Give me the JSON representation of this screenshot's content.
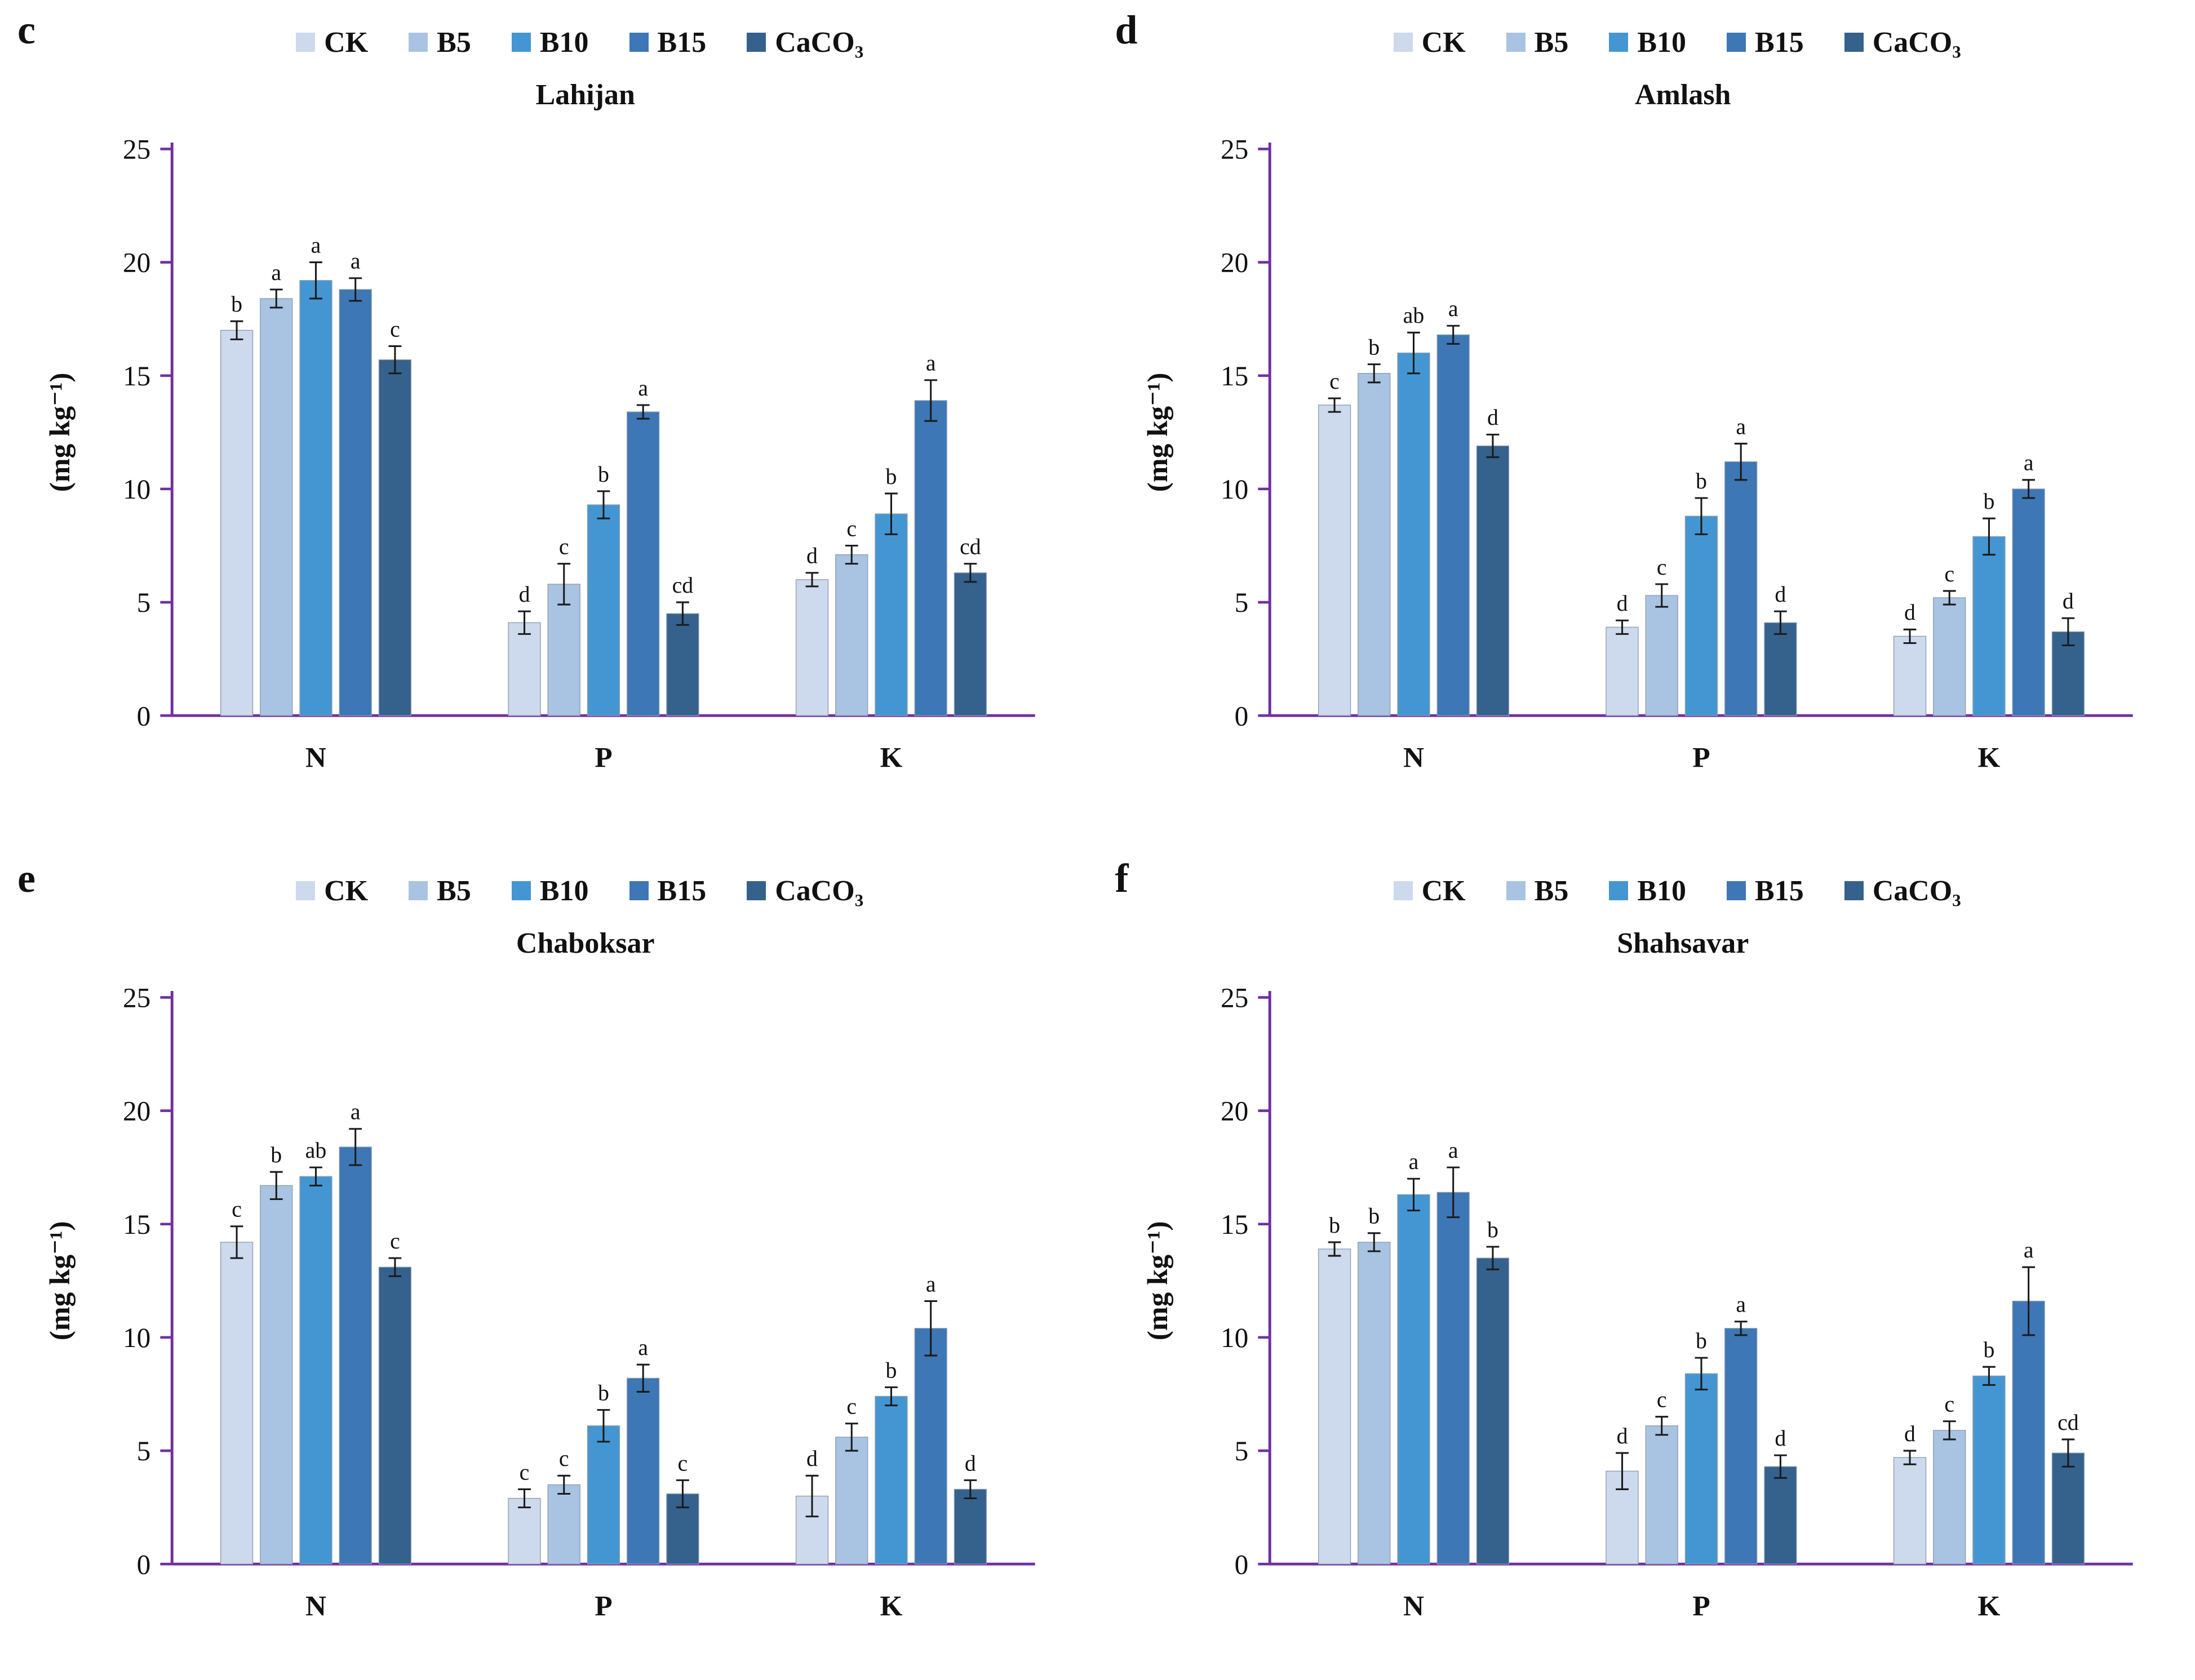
{
  "figure": {
    "axis_color": "#7030a0",
    "error_bar_color": "#1a1a1a",
    "bar_border_color": "#8d9bb0"
  },
  "chart_data": [
    {
      "type": "bar",
      "panel": "c",
      "title": "Lahijan",
      "ylabel": "(mg kg⁻¹)",
      "ylim": [
        0,
        25
      ],
      "yticks": [
        0,
        5,
        10,
        15,
        20,
        25
      ],
      "categories": [
        "N",
        "P",
        "K"
      ],
      "legend_position": "top",
      "grid": false,
      "series": [
        {
          "name": "CK",
          "color": "#cdd9ec",
          "values": [
            17.0,
            4.1,
            6.0
          ],
          "errors": [
            0.4,
            0.5,
            0.3
          ],
          "letters": [
            "b",
            "d",
            "d"
          ]
        },
        {
          "name": "B5",
          "color": "#a9c3e2",
          "values": [
            18.4,
            5.8,
            7.1
          ],
          "errors": [
            0.4,
            0.9,
            0.4
          ],
          "letters": [
            "a",
            "c",
            "c"
          ]
        },
        {
          "name": "B10",
          "color": "#4496d2",
          "values": [
            19.2,
            9.3,
            8.9
          ],
          "errors": [
            0.8,
            0.6,
            0.9
          ],
          "letters": [
            "a",
            "b",
            "b"
          ]
        },
        {
          "name": "B15",
          "color": "#3d77b5",
          "values": [
            18.8,
            13.4,
            13.9
          ],
          "errors": [
            0.5,
            0.3,
            0.9
          ],
          "letters": [
            "a",
            "a",
            "a"
          ]
        },
        {
          "name": "CaCO₃",
          "color": "#35618d",
          "values": [
            15.7,
            4.5,
            6.3
          ],
          "errors": [
            0.6,
            0.5,
            0.4
          ],
          "letters": [
            "c",
            "cd",
            "cd"
          ]
        }
      ]
    },
    {
      "type": "bar",
      "panel": "d",
      "title": "Amlash",
      "ylabel": "(mg kg⁻¹)",
      "ylim": [
        0,
        25
      ],
      "yticks": [
        0,
        5,
        10,
        15,
        20,
        25
      ],
      "categories": [
        "N",
        "P",
        "K"
      ],
      "legend_position": "top",
      "grid": false,
      "series": [
        {
          "name": "CK",
          "color": "#cdd9ec",
          "values": [
            13.7,
            3.9,
            3.5
          ],
          "errors": [
            0.3,
            0.3,
            0.3
          ],
          "letters": [
            "c",
            "d",
            "d"
          ]
        },
        {
          "name": "B5",
          "color": "#a9c3e2",
          "values": [
            15.1,
            5.3,
            5.2
          ],
          "errors": [
            0.4,
            0.5,
            0.3
          ],
          "letters": [
            "b",
            "c",
            "c"
          ]
        },
        {
          "name": "B10",
          "color": "#4496d2",
          "values": [
            16.0,
            8.8,
            7.9
          ],
          "errors": [
            0.9,
            0.8,
            0.8
          ],
          "letters": [
            "ab",
            "b",
            "b"
          ]
        },
        {
          "name": "B15",
          "color": "#3d77b5",
          "values": [
            16.8,
            11.2,
            10.0
          ],
          "errors": [
            0.4,
            0.8,
            0.4
          ],
          "letters": [
            "a",
            "a",
            "a"
          ]
        },
        {
          "name": "CaCO₃",
          "color": "#35618d",
          "values": [
            11.9,
            4.1,
            3.7
          ],
          "errors": [
            0.5,
            0.5,
            0.6
          ],
          "letters": [
            "d",
            "d",
            "d"
          ]
        }
      ]
    },
    {
      "type": "bar",
      "panel": "e",
      "title": "Chaboksar",
      "ylabel": "(mg kg⁻¹)",
      "ylim": [
        0,
        25
      ],
      "yticks": [
        0,
        5,
        10,
        15,
        20,
        25
      ],
      "categories": [
        "N",
        "P",
        "K"
      ],
      "legend_position": "top",
      "grid": false,
      "series": [
        {
          "name": "CK",
          "color": "#cdd9ec",
          "values": [
            14.2,
            2.9,
            3.0
          ],
          "errors": [
            0.7,
            0.4,
            0.9
          ],
          "letters": [
            "c",
            "c",
            "d"
          ]
        },
        {
          "name": "B5",
          "color": "#a9c3e2",
          "values": [
            16.7,
            3.5,
            5.6
          ],
          "errors": [
            0.6,
            0.4,
            0.6
          ],
          "letters": [
            "b",
            "c",
            "c"
          ]
        },
        {
          "name": "B10",
          "color": "#4496d2",
          "values": [
            17.1,
            6.1,
            7.4
          ],
          "errors": [
            0.4,
            0.7,
            0.4
          ],
          "letters": [
            "ab",
            "b",
            "b"
          ]
        },
        {
          "name": "B15",
          "color": "#3d77b5",
          "values": [
            18.4,
            8.2,
            10.4
          ],
          "errors": [
            0.8,
            0.6,
            1.2
          ],
          "letters": [
            "a",
            "a",
            "a"
          ]
        },
        {
          "name": "CaCO₃",
          "color": "#35618d",
          "values": [
            13.1,
            3.1,
            3.3
          ],
          "errors": [
            0.4,
            0.6,
            0.4
          ],
          "letters": [
            "c",
            "c",
            "d"
          ]
        }
      ]
    },
    {
      "type": "bar",
      "panel": "f",
      "title": "Shahsavar",
      "ylabel": "(mg kg⁻¹)",
      "ylim": [
        0,
        25
      ],
      "yticks": [
        0,
        5,
        10,
        15,
        20,
        25
      ],
      "categories": [
        "N",
        "P",
        "K"
      ],
      "legend_position": "top",
      "grid": false,
      "series": [
        {
          "name": "CK",
          "color": "#cdd9ec",
          "values": [
            13.9,
            4.1,
            4.7
          ],
          "errors": [
            0.3,
            0.8,
            0.3
          ],
          "letters": [
            "b",
            "d",
            "d"
          ]
        },
        {
          "name": "B5",
          "color": "#a9c3e2",
          "values": [
            14.2,
            6.1,
            5.9
          ],
          "errors": [
            0.4,
            0.4,
            0.4
          ],
          "letters": [
            "b",
            "c",
            "c"
          ]
        },
        {
          "name": "B10",
          "color": "#4496d2",
          "values": [
            16.3,
            8.4,
            8.3
          ],
          "errors": [
            0.7,
            0.7,
            0.4
          ],
          "letters": [
            "a",
            "b",
            "b"
          ]
        },
        {
          "name": "B15",
          "color": "#3d77b5",
          "values": [
            16.4,
            10.4,
            11.6
          ],
          "errors": [
            1.1,
            0.3,
            1.5
          ],
          "letters": [
            "a",
            "a",
            "a"
          ]
        },
        {
          "name": "CaCO₃",
          "color": "#35618d",
          "values": [
            13.5,
            4.3,
            4.9
          ],
          "errors": [
            0.5,
            0.5,
            0.6
          ],
          "letters": [
            "b",
            "d",
            "cd"
          ]
        }
      ]
    }
  ]
}
